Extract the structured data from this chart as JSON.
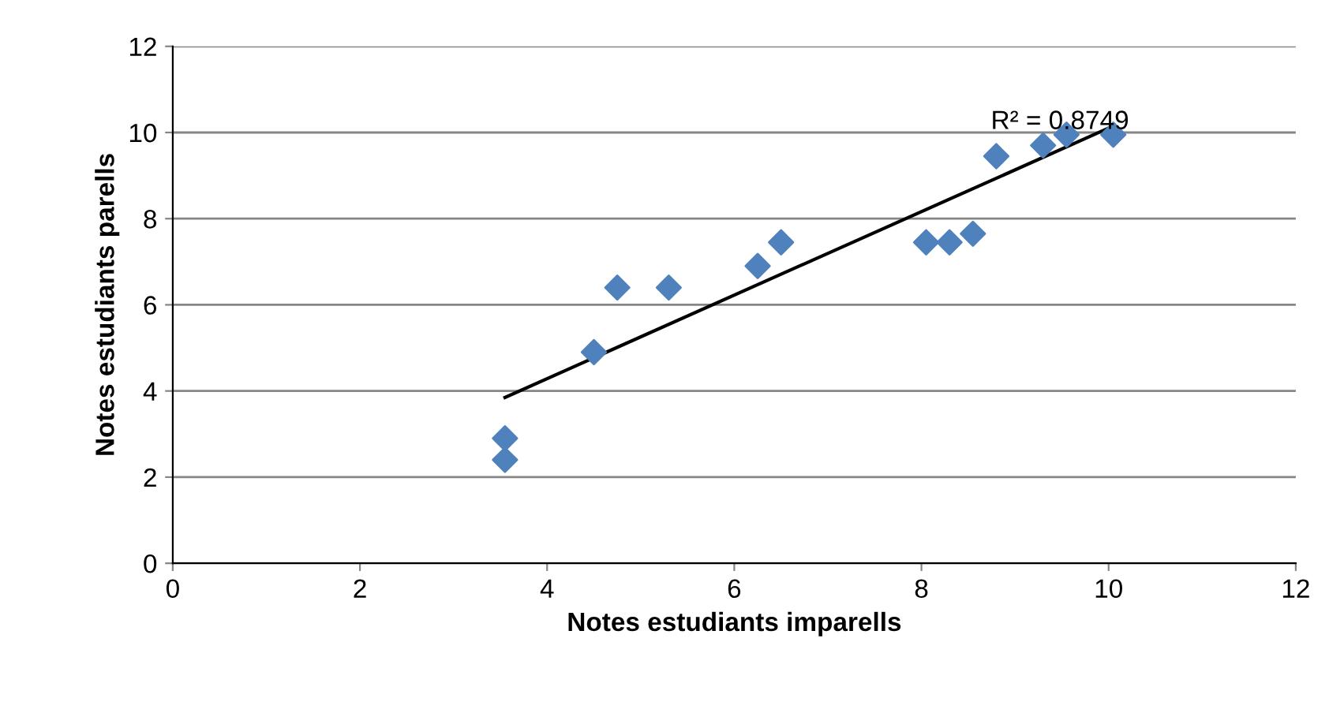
{
  "chart_data": {
    "type": "scatter",
    "xlabel": "Notes estudiants imparells",
    "ylabel": "Notes estudiants parells",
    "xlim": [
      0,
      12
    ],
    "ylim": [
      0,
      12
    ],
    "xticks": [
      0,
      2,
      4,
      6,
      8,
      10,
      12
    ],
    "yticks": [
      0,
      2,
      4,
      6,
      8,
      10,
      12
    ],
    "grid": "y",
    "series": [
      {
        "marker": "diamond",
        "color": "#4f81bd",
        "x": [
          3.55,
          3.55,
          4.5,
          4.75,
          5.3,
          6.25,
          6.5,
          8.05,
          8.3,
          8.55,
          8.8,
          9.3,
          9.55,
          10.05
        ],
        "values": [
          2.9,
          2.4,
          4.9,
          6.4,
          6.4,
          6.9,
          7.45,
          7.45,
          7.45,
          7.65,
          9.45,
          9.7,
          9.95,
          9.95
        ]
      },
      {
        "type": "line",
        "marker": "none",
        "color": "#000000",
        "x": [
          3.55,
          10.05
        ],
        "values": [
          3.85,
          10.15
        ]
      }
    ],
    "annotations": [
      "R² = 0.8749"
    ]
  }
}
